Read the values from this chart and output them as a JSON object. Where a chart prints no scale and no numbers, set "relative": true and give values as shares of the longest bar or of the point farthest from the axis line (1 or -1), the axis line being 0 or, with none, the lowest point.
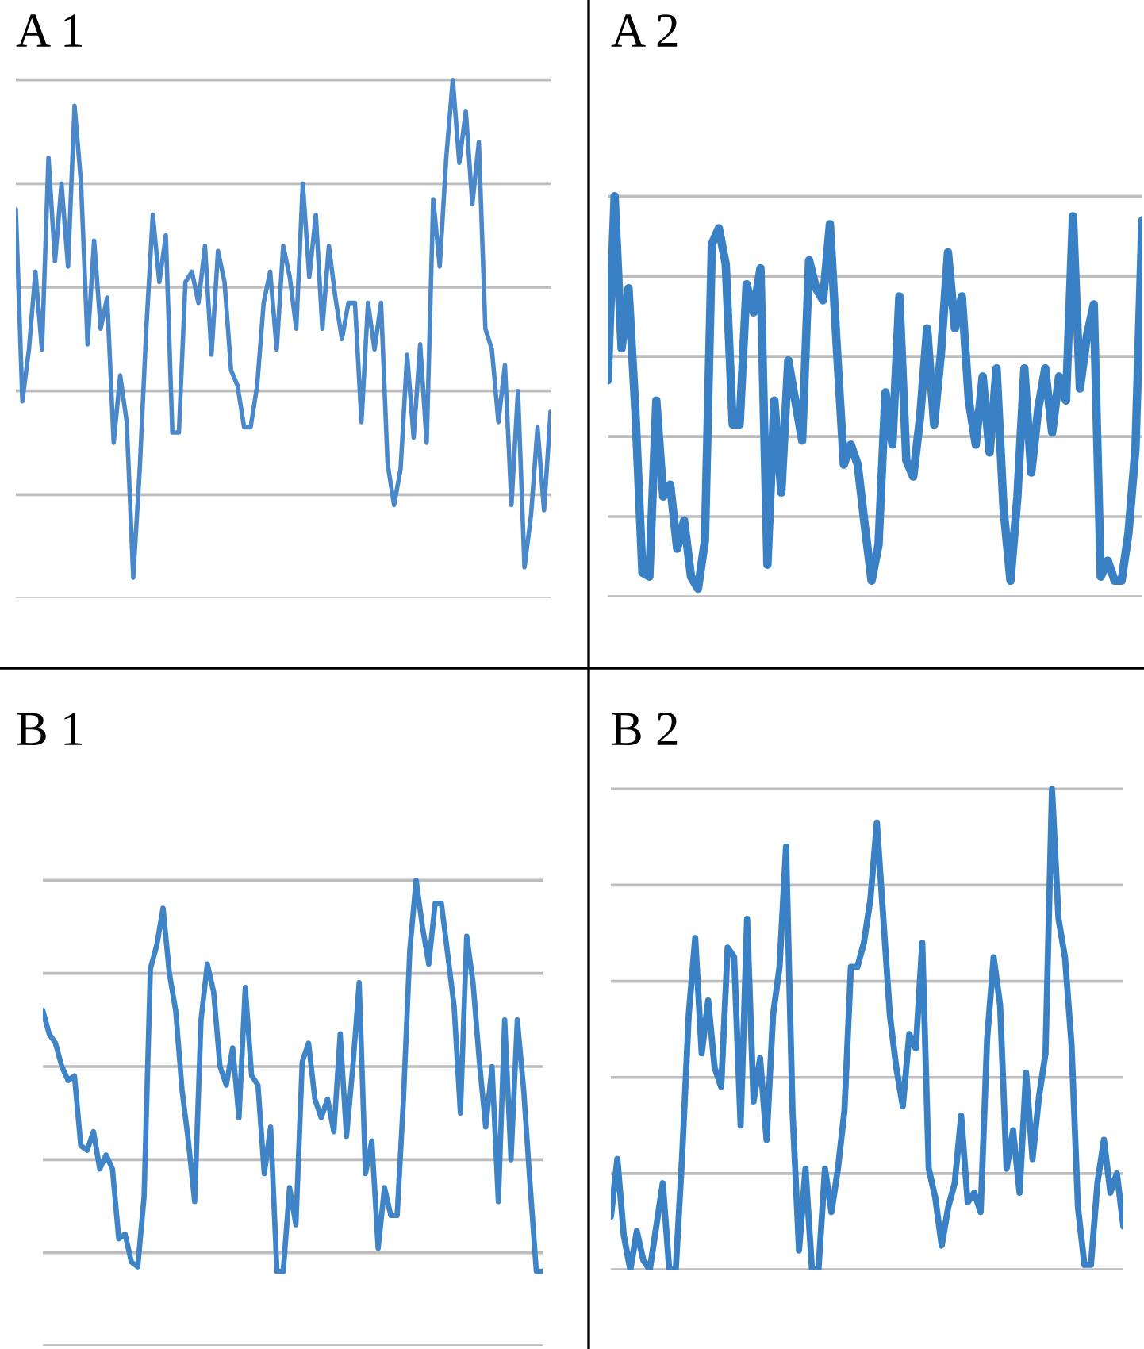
{
  "chart_data": [
    {
      "type": "line",
      "title": "A 1",
      "relative": true,
      "grid": "y",
      "categories": [
        null,
        null,
        null,
        null,
        null,
        null,
        null,
        null,
        null,
        null,
        null,
        null,
        null,
        null,
        null,
        null,
        null,
        null,
        null,
        null,
        null,
        null,
        null,
        null,
        null,
        null,
        null,
        null,
        null,
        null,
        null,
        null,
        null,
        null,
        null,
        null,
        null,
        null,
        null,
        null,
        null,
        null,
        null,
        null,
        null,
        null,
        null,
        null,
        null,
        null,
        null,
        null,
        null,
        null,
        null,
        null,
        null,
        null,
        null,
        null,
        null,
        null,
        null,
        null,
        null,
        null,
        null,
        null,
        null,
        null,
        null,
        null,
        null,
        null,
        null,
        null,
        null,
        null,
        null,
        null,
        null,
        null,
        null
      ],
      "series": [
        {
          "color": "#4a88c9",
          "values": [
            0.75,
            0.38,
            0.48,
            0.63,
            0.48,
            0.85,
            0.65,
            0.8,
            0.64,
            0.95,
            0.8,
            0.49,
            0.69,
            0.52,
            0.58,
            0.3,
            0.43,
            0.34,
            0.04,
            0.25,
            0.52,
            0.74,
            0.61,
            0.7,
            0.32,
            0.32,
            0.61,
            0.63,
            0.57,
            0.68,
            0.47,
            0.67,
            0.61,
            0.44,
            0.41,
            0.33,
            0.33,
            0.41,
            0.57,
            0.63,
            0.48,
            0.68,
            0.62,
            0.52,
            0.8,
            0.62,
            0.74,
            0.52,
            0.68,
            0.58,
            0.5,
            0.57,
            0.57,
            0.34,
            0.57,
            0.48,
            0.57,
            0.26,
            0.18,
            0.25,
            0.47,
            0.31,
            0.49,
            0.3,
            0.77,
            0.64,
            0.85,
            1.0,
            0.84,
            0.94,
            0.76,
            0.88,
            0.52,
            0.48,
            0.34,
            0.45,
            0.18,
            0.4,
            0.06,
            0.16,
            0.33,
            0.17,
            0.36
          ]
        }
      ]
    },
    {
      "type": "line",
      "title": "A 2",
      "relative": true,
      "grid": "y",
      "categories": [
        null,
        null,
        null,
        null,
        null,
        null,
        null,
        null,
        null,
        null,
        null,
        null,
        null,
        null,
        null,
        null,
        null,
        null,
        null,
        null,
        null,
        null,
        null,
        null,
        null,
        null,
        null,
        null,
        null,
        null,
        null,
        null,
        null,
        null,
        null,
        null,
        null,
        null,
        null,
        null,
        null,
        null,
        null,
        null,
        null,
        null,
        null,
        null,
        null,
        null,
        null,
        null,
        null,
        null,
        null,
        null,
        null,
        null,
        null,
        null,
        null,
        null,
        null,
        null,
        null,
        null,
        null,
        null,
        null,
        null,
        null,
        null,
        null,
        null,
        null,
        null,
        null,
        null
      ],
      "series": [
        {
          "color": "#3a80c4",
          "values": [
            0.54,
            1.0,
            0.62,
            0.77,
            0.46,
            0.06,
            0.05,
            0.49,
            0.25,
            0.28,
            0.12,
            0.19,
            0.05,
            0.02,
            0.14,
            0.88,
            0.92,
            0.83,
            0.43,
            0.43,
            0.78,
            0.71,
            0.82,
            0.08,
            0.49,
            0.26,
            0.59,
            0.49,
            0.39,
            0.84,
            0.77,
            0.74,
            0.93,
            0.62,
            0.33,
            0.38,
            0.33,
            0.18,
            0.04,
            0.13,
            0.51,
            0.38,
            0.75,
            0.34,
            0.3,
            0.45,
            0.67,
            0.43,
            0.61,
            0.86,
            0.67,
            0.75,
            0.49,
            0.38,
            0.55,
            0.36,
            0.57,
            0.22,
            0.04,
            0.25,
            0.57,
            0.31,
            0.47,
            0.57,
            0.41,
            0.55,
            0.49,
            0.95,
            0.52,
            0.65,
            0.73,
            0.05,
            0.09,
            0.04,
            0.04,
            0.16,
            0.37,
            0.94
          ]
        }
      ]
    },
    {
      "type": "line",
      "title": "B 1",
      "relative": true,
      "grid": "y",
      "categories": [
        null,
        null,
        null,
        null,
        null,
        null,
        null,
        null,
        null,
        null,
        null,
        null,
        null,
        null,
        null,
        null,
        null,
        null,
        null,
        null,
        null,
        null,
        null,
        null,
        null,
        null,
        null,
        null,
        null,
        null,
        null,
        null,
        null,
        null,
        null,
        null,
        null,
        null,
        null,
        null,
        null,
        null,
        null,
        null,
        null,
        null,
        null,
        null,
        null,
        null,
        null,
        null,
        null,
        null,
        null,
        null,
        null,
        null,
        null,
        null,
        null,
        null,
        null,
        null,
        null,
        null,
        null,
        null,
        null,
        null,
        null,
        null,
        null,
        null,
        null,
        null,
        null,
        null,
        null,
        null
      ],
      "series": [
        {
          "color": "#3f84c6",
          "values": [
            0.72,
            0.67,
            0.65,
            0.6,
            0.57,
            0.58,
            0.43,
            0.42,
            0.46,
            0.38,
            0.41,
            0.38,
            0.23,
            0.24,
            0.18,
            0.17,
            0.32,
            0.81,
            0.86,
            0.94,
            0.8,
            0.72,
            0.55,
            0.44,
            0.31,
            0.7,
            0.82,
            0.76,
            0.6,
            0.56,
            0.64,
            0.49,
            0.77,
            0.58,
            0.56,
            0.37,
            0.47,
            0.16,
            0.16,
            0.34,
            0.26,
            0.61,
            0.65,
            0.53,
            0.49,
            0.53,
            0.46,
            0.67,
            0.45,
            0.6,
            0.78,
            0.37,
            0.44,
            0.21,
            0.34,
            0.28,
            0.28,
            0.53,
            0.85,
            1.0,
            0.9,
            0.82,
            0.95,
            0.95,
            0.84,
            0.73,
            0.5,
            0.88,
            0.78,
            0.61,
            0.47,
            0.6,
            0.31,
            0.7,
            0.4,
            0.7,
            0.55,
            0.35,
            0.16,
            0.16
          ]
        }
      ]
    },
    {
      "type": "line",
      "title": "B 2",
      "relative": true,
      "grid": "y",
      "categories": [
        null,
        null,
        null,
        null,
        null,
        null,
        null,
        null,
        null,
        null,
        null,
        null,
        null,
        null,
        null,
        null,
        null,
        null,
        null,
        null,
        null,
        null,
        null,
        null,
        null,
        null,
        null,
        null,
        null,
        null,
        null,
        null,
        null,
        null,
        null,
        null,
        null,
        null,
        null,
        null,
        null,
        null,
        null,
        null,
        null,
        null,
        null,
        null,
        null,
        null,
        null,
        null,
        null,
        null,
        null,
        null,
        null,
        null,
        null,
        null,
        null,
        null,
        null,
        null,
        null,
        null,
        null,
        null,
        null,
        null,
        null,
        null,
        null,
        null,
        null,
        null,
        null,
        null,
        null,
        null
      ],
      "series": [
        {
          "color": "#3a80c4",
          "values": [
            0.11,
            0.23,
            0.07,
            0.0,
            0.08,
            0.02,
            0.0,
            0.09,
            0.18,
            0.0,
            0.0,
            0.24,
            0.53,
            0.69,
            0.45,
            0.56,
            0.42,
            0.38,
            0.67,
            0.65,
            0.3,
            0.73,
            0.35,
            0.44,
            0.27,
            0.53,
            0.63,
            0.88,
            0.33,
            0.04,
            0.21,
            0.0,
            0.0,
            0.21,
            0.12,
            0.21,
            0.33,
            0.63,
            0.63,
            0.68,
            0.77,
            0.93,
            0.73,
            0.53,
            0.42,
            0.34,
            0.49,
            0.46,
            0.68,
            0.21,
            0.15,
            0.05,
            0.13,
            0.18,
            0.32,
            0.14,
            0.16,
            0.12,
            0.48,
            0.65,
            0.55,
            0.21,
            0.29,
            0.16,
            0.41,
            0.23,
            0.36,
            0.45,
            1.0,
            0.73,
            0.65,
            0.47,
            0.13,
            0.01,
            0.01,
            0.18,
            0.27,
            0.16,
            0.2,
            0.09
          ]
        }
      ]
    }
  ]
}
